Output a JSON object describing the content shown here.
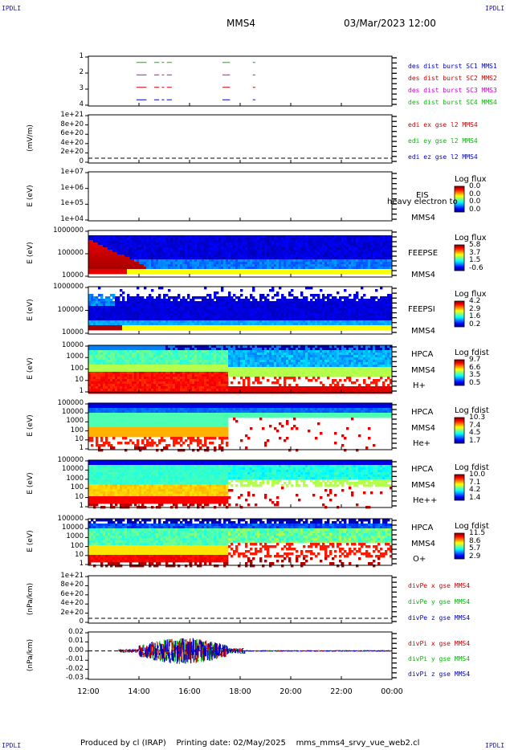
{
  "corner_labels": [
    "IPDLI",
    "IPDLI",
    "IPDLI",
    "IPDLI"
  ],
  "header": {
    "spacecraft": "MMS4",
    "date_time": "03/Mar/2023 12:00"
  },
  "footer": {
    "produced_by": "Produced by cl (IRAP)",
    "printing_date": "Printing date: 02/May/2025",
    "file": "mms_mms4_srvy_vue_web2.cl"
  },
  "colors": {
    "sc1": "#0000cc",
    "sc2": "#cc0000",
    "sc3": "#cc00cc",
    "sc4": "#00bb00",
    "x": "#cc0000",
    "y": "#00bb00",
    "z": "#0000cc"
  },
  "chart_data": [
    {
      "type": "line",
      "name": "burst",
      "ylabel": "",
      "y_ticks": [
        "1",
        "2",
        "3",
        "4"
      ],
      "ylim": [
        0.5,
        4.5
      ],
      "x": [
        "12:00",
        "14:00",
        "16:00",
        "18:00",
        "20:00",
        "22:00",
        "00:00"
      ],
      "xlim_hours": [
        12,
        24
      ],
      "legend": [
        "des dist burst SC1 MMS1",
        "des dist burst SC2 MMS2",
        "des dist burst SC3 MMS3",
        "des dist burst SC4 MMS4"
      ],
      "segments_hours": [
        [
          13.9,
          14.3
        ],
        [
          14.6,
          14.8
        ],
        [
          14.9,
          15.0
        ],
        [
          15.1,
          15.3
        ],
        [
          17.3,
          17.6
        ],
        [
          18.5,
          18.6
        ]
      ]
    },
    {
      "type": "line",
      "name": "edi",
      "ylabel": "(mV/m)",
      "y_ticks": [
        "1e+21",
        "8e+20",
        "6e+20",
        "4e+20",
        "2e+20",
        "0"
      ],
      "legend": [
        "edi ex gse l2 MMS4",
        "edi ey gse l2 MMS4",
        "edi ez gse l2 MMS4"
      ]
    },
    {
      "type": "heatmap",
      "name": "eis",
      "ylabel": "E (eV)",
      "y_ticks": [
        "1e+07",
        "1e+06",
        "1e+05",
        "1e+04"
      ],
      "right_labels": [
        "EIS",
        "heavy electron to",
        "MMS4"
      ],
      "colorbar": {
        "title": "Log flux",
        "values": [
          "0.0",
          "0.0",
          "0.0",
          "0.0"
        ]
      }
    },
    {
      "type": "heatmap",
      "name": "feepse",
      "ylabel": "E (eV)",
      "y_ticks": [
        "1000000",
        "100000",
        "10000"
      ],
      "right_labels": [
        "FEEPSE",
        "MMS4"
      ],
      "colorbar": {
        "title": "Log flux",
        "values": [
          "5.8",
          "3.7",
          "1.5",
          "-0.6"
        ]
      }
    },
    {
      "type": "heatmap",
      "name": "feepsi",
      "ylabel": "E (eV)",
      "y_ticks": [
        "1000000",
        "100000",
        "10000"
      ],
      "right_labels": [
        "FEEPSI",
        "MMS4"
      ],
      "colorbar": {
        "title": "Log flux",
        "values": [
          "4.2",
          "2.9",
          "1.6",
          "0.2"
        ]
      }
    },
    {
      "type": "heatmap",
      "name": "hpca-h",
      "ylabel": "E (eV)",
      "y_ticks": [
        "10000",
        "1000",
        "100",
        "10",
        "1"
      ],
      "right_labels": [
        "HPCA",
        "MMS4",
        "H+"
      ],
      "colorbar": {
        "title": "Log fdist",
        "values": [
          "9.7",
          "6.6",
          "3.5",
          "0.5"
        ]
      }
    },
    {
      "type": "heatmap",
      "name": "hpca-he",
      "ylabel": "E (eV)",
      "y_ticks": [
        "100000",
        "10000",
        "1000",
        "100",
        "10",
        "1"
      ],
      "right_labels": [
        "HPCA",
        "MMS4",
        "He+"
      ],
      "colorbar": {
        "title": "Log fdist",
        "values": [
          "10.3",
          "7.4",
          "4.5",
          "1.7"
        ]
      }
    },
    {
      "type": "heatmap",
      "name": "hpca-he2",
      "ylabel": "E (eV)",
      "y_ticks": [
        "100000",
        "10000",
        "1000",
        "100",
        "10",
        "1"
      ],
      "right_labels": [
        "HPCA",
        "MMS4",
        "He++"
      ],
      "colorbar": {
        "title": "Log fdist",
        "values": [
          "10.0",
          "7.1",
          "4.2",
          "1.4"
        ]
      }
    },
    {
      "type": "heatmap",
      "name": "hpca-o",
      "ylabel": "E (eV)",
      "y_ticks": [
        "100000",
        "10000",
        "1000",
        "100",
        "10",
        "1"
      ],
      "right_labels": [
        "HPCA",
        "MMS4",
        "O+"
      ],
      "colorbar": {
        "title": "Log fdist",
        "values": [
          "11.5",
          "8.6",
          "5.7",
          "2.9"
        ]
      }
    },
    {
      "type": "line",
      "name": "divpe",
      "ylabel": "(nPa/km)",
      "y_ticks": [
        "1e+21",
        "8e+20",
        "6e+20",
        "4e+20",
        "2e+20",
        "0"
      ],
      "legend": [
        "divPe x gse MMS4",
        "divPe y gse MMS4",
        "divPe z gse MMS4"
      ]
    },
    {
      "type": "line",
      "name": "divpi",
      "ylabel": "(nPa/km)",
      "y_ticks": [
        "0.02",
        "0.01",
        "0.00",
        "-0.01",
        "-0.02",
        "-0.03"
      ],
      "ylim": [
        -0.03,
        0.02
      ],
      "legend": [
        "divPi x gse MMS4",
        "divPi y gse MMS4",
        "divPi z gse MMS4"
      ]
    }
  ]
}
